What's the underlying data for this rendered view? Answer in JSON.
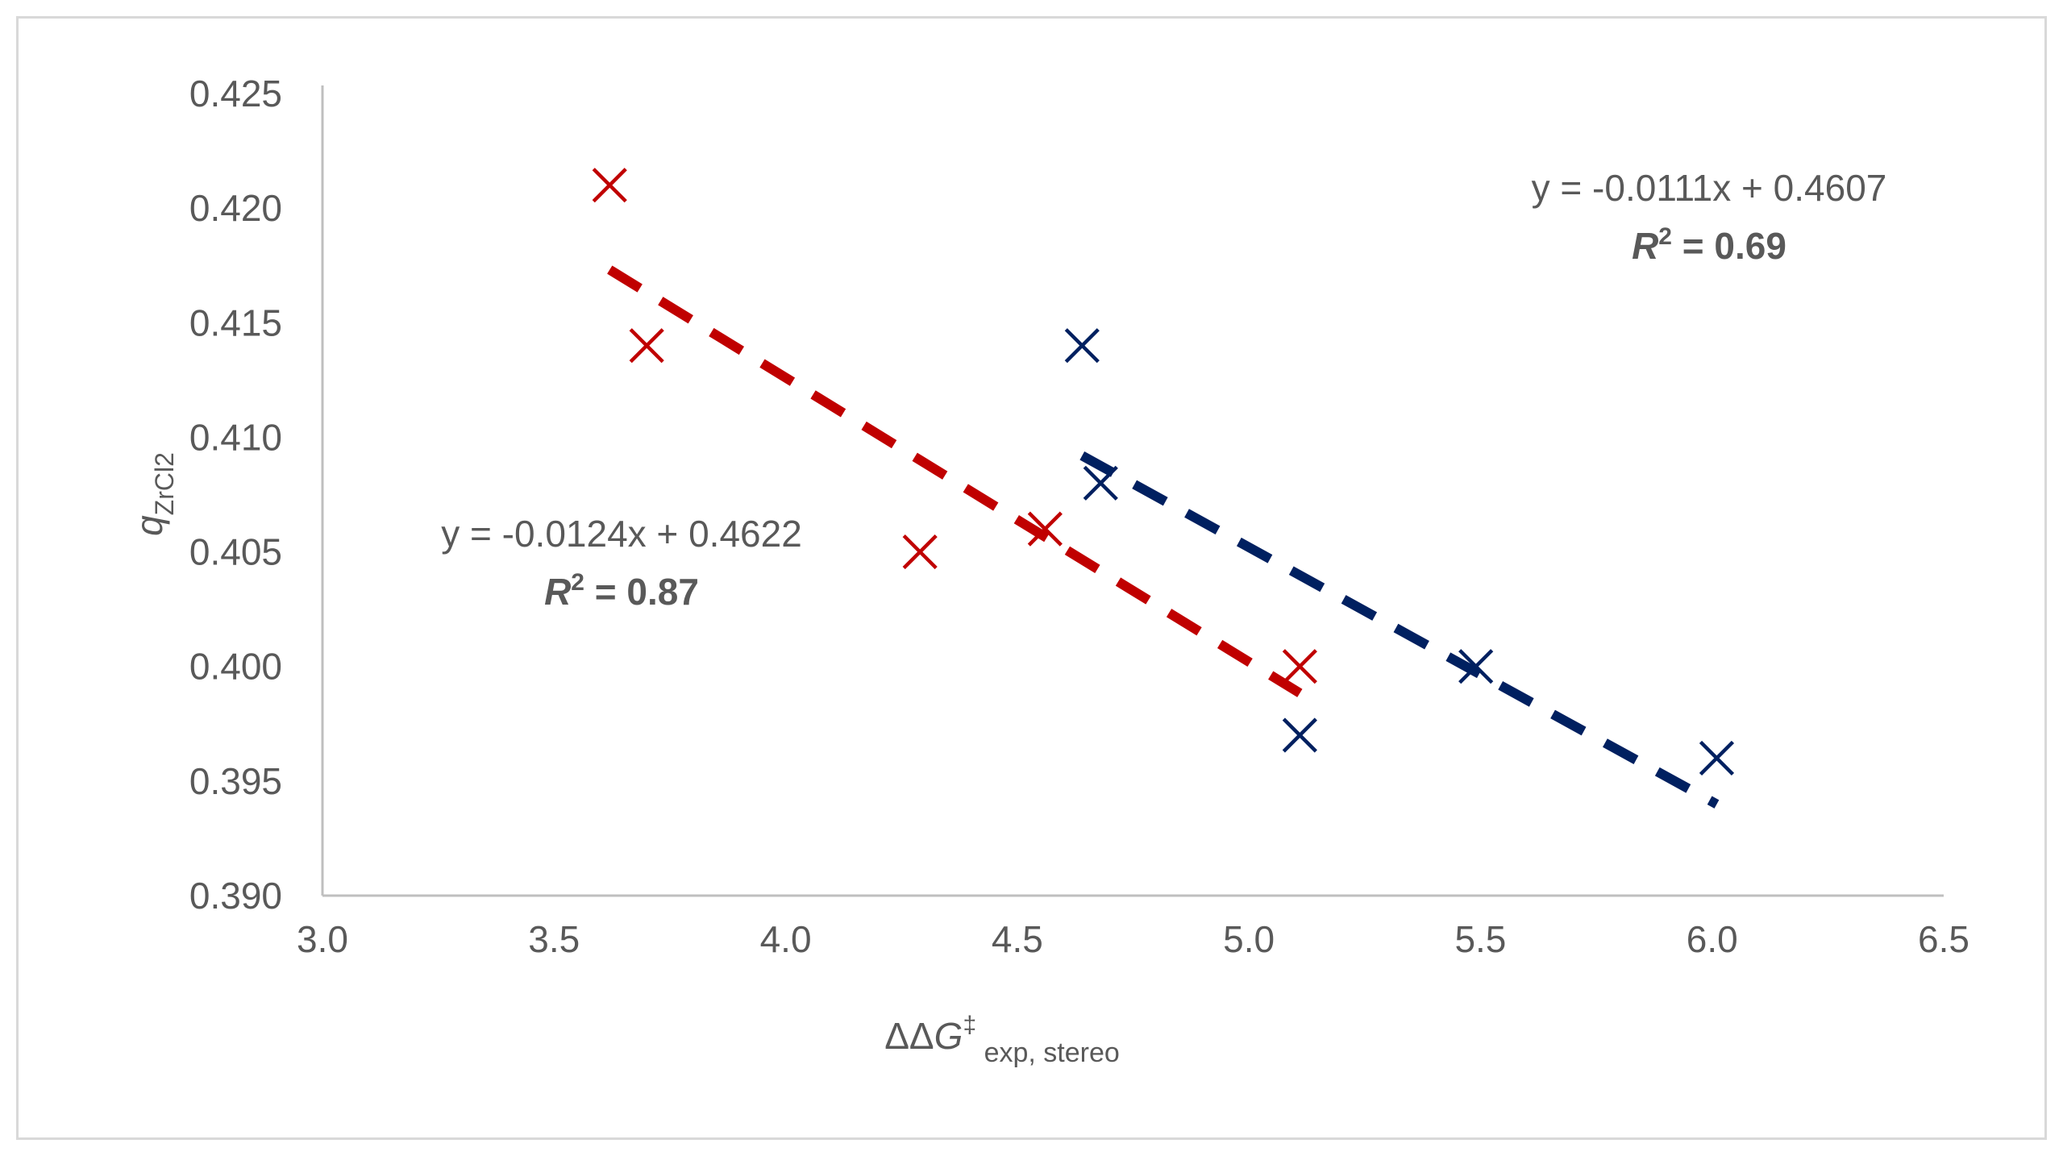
{
  "chart_data": {
    "type": "scatter",
    "title": "",
    "xlabel": {
      "main": "ΔΔG",
      "sup": "‡",
      "sub": "exp, stereo"
    },
    "ylabel": {
      "main": "q",
      "sub": "ZrCl2"
    },
    "xlim": [
      3.0,
      6.5
    ],
    "ylim": [
      0.39,
      0.425
    ],
    "x_ticks": [
      "3.0",
      "3.5",
      "4.0",
      "4.5",
      "5.0",
      "5.5",
      "6.0",
      "6.5"
    ],
    "y_ticks": [
      "0.390",
      "0.395",
      "0.400",
      "0.405",
      "0.410",
      "0.415",
      "0.420",
      "0.425"
    ],
    "grid": false,
    "series": [
      {
        "name": "red",
        "color": "#c00000",
        "marker": "x",
        "points": [
          {
            "x": 3.62,
            "y": 0.421
          },
          {
            "x": 3.7,
            "y": 0.414
          },
          {
            "x": 4.29,
            "y": 0.405
          },
          {
            "x": 4.56,
            "y": 0.406
          },
          {
            "x": 5.11,
            "y": 0.4
          }
        ],
        "trendline": {
          "x_range": [
            3.62,
            5.11
          ],
          "slope": -0.0124,
          "intercept": 0.4622,
          "equation": "y = -0.0124x + 0.4622",
          "r2_label": "R",
          "r2_sup": "2",
          "r2_value": " = 0.87"
        }
      },
      {
        "name": "blue",
        "color": "#002060",
        "marker": "x",
        "points": [
          {
            "x": 4.64,
            "y": 0.414
          },
          {
            "x": 4.68,
            "y": 0.408
          },
          {
            "x": 5.11,
            "y": 0.397
          },
          {
            "x": 5.49,
            "y": 0.4
          },
          {
            "x": 6.01,
            "y": 0.396
          }
        ],
        "trendline": {
          "x_range": [
            4.64,
            6.01
          ],
          "slope": -0.0111,
          "intercept": 0.4607,
          "equation": "y = -0.0111x + 0.4607",
          "r2_label": "R",
          "r2_sup": "2",
          "r2_value": " = 0.69"
        }
      }
    ]
  }
}
